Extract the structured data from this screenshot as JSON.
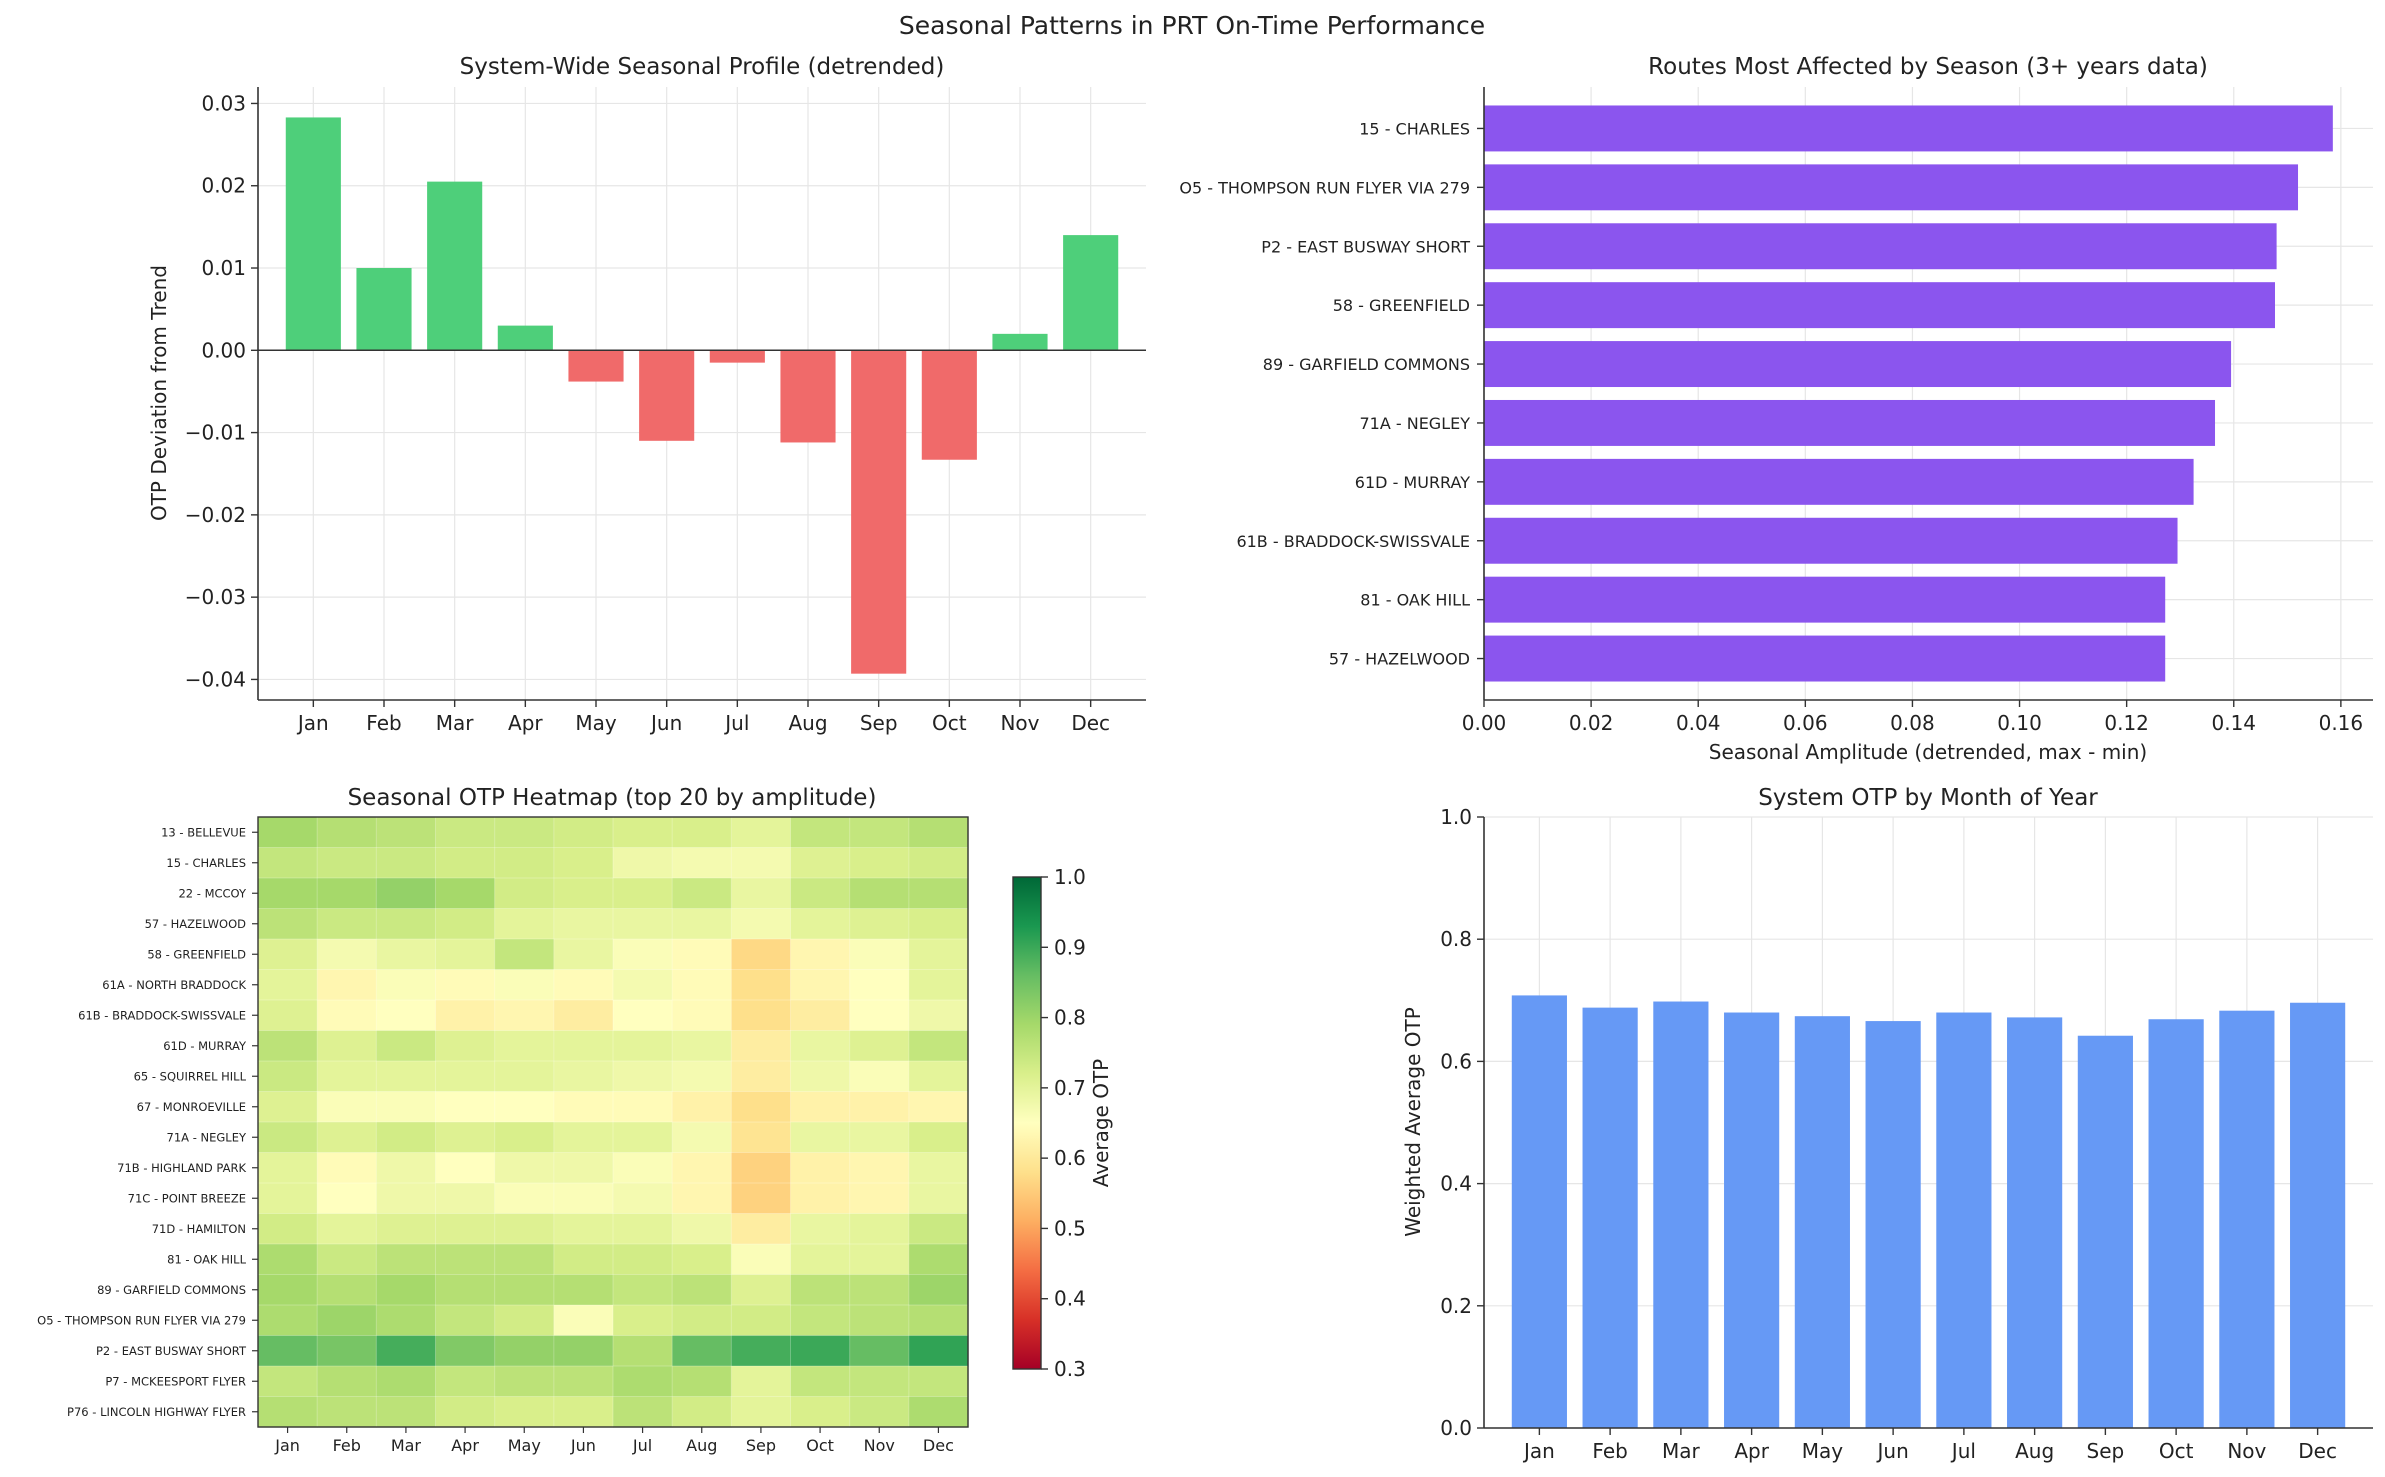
{
  "suptitle": "Seasonal Patterns in PRT On-Time Performance",
  "colors": {
    "positive": "#4ecf7a",
    "negative": "#f06a6a",
    "purple": "#8b55ee",
    "blue": "#6699f5",
    "grid": "#e6e6e6",
    "axis": "#333333"
  },
  "chart_data": [
    {
      "id": "seasonal_profile",
      "type": "bar",
      "title": "System-Wide Seasonal Profile (detrended)",
      "xlabel": "",
      "ylabel": "OTP Deviation from Trend",
      "categories": [
        "Jan",
        "Feb",
        "Mar",
        "Apr",
        "May",
        "Jun",
        "Jul",
        "Aug",
        "Sep",
        "Oct",
        "Nov",
        "Dec"
      ],
      "values": [
        0.0283,
        0.01,
        0.0205,
        0.003,
        -0.0038,
        -0.011,
        -0.0015,
        -0.0112,
        -0.0393,
        -0.0133,
        0.002,
        0.014
      ],
      "ylim": [
        -0.0425,
        0.032
      ],
      "yticks": [
        0.03,
        0.02,
        0.01,
        0.0,
        -0.01,
        -0.02,
        -0.03,
        -0.04
      ],
      "ytick_labels": [
        "0.03",
        "0.02",
        "0.01",
        "0.00",
        "−0.01",
        "−0.02",
        "−0.03",
        "−0.04"
      ],
      "grid": true
    },
    {
      "id": "routes_affected",
      "type": "bar",
      "orientation": "horizontal",
      "title": "Routes Most Affected by Season (3+ years data)",
      "xlabel": "Seasonal Amplitude (detrended, max - min)",
      "ylabel": "",
      "categories": [
        "15 - CHARLES",
        "O5 - THOMPSON RUN FLYER VIA 279",
        "P2 - EAST BUSWAY SHORT",
        "58 - GREENFIELD",
        "89 - GARFIELD COMMONS",
        "71A - NEGLEY",
        "61D - MURRAY",
        "61B - BRADDOCK-SWISSVALE",
        "81 - OAK HILL",
        "57 - HAZELWOOD"
      ],
      "values": [
        0.1585,
        0.152,
        0.148,
        0.1477,
        0.1395,
        0.1365,
        0.1325,
        0.1295,
        0.1272,
        0.1272
      ],
      "xlim": [
        0,
        0.166
      ],
      "xticks": [
        0.0,
        0.02,
        0.04,
        0.06,
        0.08,
        0.1,
        0.12,
        0.14,
        0.16
      ],
      "xtick_labels": [
        "0.00",
        "0.02",
        "0.04",
        "0.06",
        "0.08",
        "0.10",
        "0.12",
        "0.14",
        "0.16"
      ],
      "grid": true
    },
    {
      "id": "heatmap",
      "type": "heatmap",
      "title": "Seasonal OTP Heatmap (top 20 by amplitude)",
      "columns": [
        "Jan",
        "Feb",
        "Mar",
        "Apr",
        "May",
        "Jun",
        "Jul",
        "Aug",
        "Sep",
        "Oct",
        "Nov",
        "Dec"
      ],
      "rows": [
        "13 - BELLEVUE",
        "15 - CHARLES",
        "22 - MCCOY",
        "57 - HAZELWOOD",
        "58 - GREENFIELD",
        "61A - NORTH BRADDOCK",
        "61B - BRADDOCK-SWISSVALE",
        "61D - MURRAY",
        "65 - SQUIRREL HILL",
        "67 - MONROEVILLE",
        "71A - NEGLEY",
        "71B - HIGHLAND PARK",
        "71C - POINT BREEZE",
        "71D - HAMILTON",
        "81 - OAK HILL",
        "89 - GARFIELD COMMONS",
        "O5 - THOMPSON RUN FLYER VIA 279",
        "P2 - EAST BUSWAY SHORT",
        "P7 - MCKEESPORT FLYER",
        "P76 - LINCOLN HIGHWAY FLYER"
      ],
      "values": [
        [
          0.79,
          0.77,
          0.76,
          0.74,
          0.74,
          0.73,
          0.72,
          0.72,
          0.7,
          0.75,
          0.75,
          0.77
        ],
        [
          0.75,
          0.74,
          0.74,
          0.73,
          0.73,
          0.72,
          0.68,
          0.67,
          0.67,
          0.71,
          0.72,
          0.73
        ],
        [
          0.79,
          0.79,
          0.81,
          0.79,
          0.73,
          0.72,
          0.72,
          0.74,
          0.69,
          0.74,
          0.77,
          0.77
        ],
        [
          0.76,
          0.74,
          0.74,
          0.73,
          0.7,
          0.69,
          0.69,
          0.69,
          0.67,
          0.7,
          0.71,
          0.72
        ],
        [
          0.71,
          0.67,
          0.69,
          0.7,
          0.75,
          0.69,
          0.66,
          0.64,
          0.57,
          0.63,
          0.66,
          0.7
        ],
        [
          0.7,
          0.63,
          0.66,
          0.64,
          0.66,
          0.64,
          0.67,
          0.64,
          0.58,
          0.63,
          0.65,
          0.7
        ],
        [
          0.71,
          0.64,
          0.65,
          0.62,
          0.63,
          0.61,
          0.65,
          0.64,
          0.58,
          0.61,
          0.65,
          0.68
        ],
        [
          0.76,
          0.71,
          0.74,
          0.71,
          0.7,
          0.7,
          0.7,
          0.69,
          0.61,
          0.69,
          0.71,
          0.75
        ],
        [
          0.74,
          0.7,
          0.7,
          0.7,
          0.7,
          0.69,
          0.68,
          0.67,
          0.61,
          0.68,
          0.66,
          0.7
        ],
        [
          0.71,
          0.66,
          0.66,
          0.65,
          0.65,
          0.64,
          0.64,
          0.62,
          0.58,
          0.62,
          0.62,
          0.63
        ],
        [
          0.74,
          0.71,
          0.73,
          0.71,
          0.72,
          0.7,
          0.7,
          0.67,
          0.59,
          0.69,
          0.69,
          0.72
        ],
        [
          0.7,
          0.64,
          0.68,
          0.65,
          0.68,
          0.68,
          0.66,
          0.63,
          0.56,
          0.62,
          0.63,
          0.69
        ],
        [
          0.7,
          0.65,
          0.68,
          0.68,
          0.66,
          0.66,
          0.67,
          0.63,
          0.56,
          0.62,
          0.63,
          0.69
        ],
        [
          0.73,
          0.7,
          0.71,
          0.71,
          0.71,
          0.7,
          0.7,
          0.68,
          0.61,
          0.69,
          0.7,
          0.74
        ],
        [
          0.78,
          0.74,
          0.76,
          0.76,
          0.76,
          0.73,
          0.73,
          0.72,
          0.66,
          0.7,
          0.7,
          0.78
        ],
        [
          0.79,
          0.77,
          0.79,
          0.77,
          0.77,
          0.77,
          0.75,
          0.76,
          0.71,
          0.76,
          0.76,
          0.8
        ],
        [
          0.78,
          0.8,
          0.78,
          0.75,
          0.73,
          0.66,
          0.72,
          0.73,
          0.73,
          0.75,
          0.76,
          0.77
        ],
        [
          0.86,
          0.84,
          0.89,
          0.83,
          0.81,
          0.81,
          0.77,
          0.86,
          0.89,
          0.9,
          0.86,
          0.91
        ],
        [
          0.75,
          0.77,
          0.78,
          0.75,
          0.76,
          0.76,
          0.78,
          0.77,
          0.7,
          0.75,
          0.75,
          0.75
        ],
        [
          0.77,
          0.76,
          0.76,
          0.73,
          0.72,
          0.72,
          0.76,
          0.73,
          0.7,
          0.72,
          0.74,
          0.78
        ]
      ],
      "colorbar": {
        "label": "Average OTP",
        "vmin": 0.3,
        "vmax": 1.0,
        "ticks": [
          "0.3",
          "0.4",
          "0.5",
          "0.6",
          "0.7",
          "0.8",
          "0.9",
          "1.0"
        ]
      }
    },
    {
      "id": "system_otp",
      "type": "bar",
      "title": "System OTP by Month of Year",
      "xlabel": "",
      "ylabel": "Weighted Average OTP",
      "categories": [
        "Jan",
        "Feb",
        "Mar",
        "Apr",
        "May",
        "Jun",
        "Jul",
        "Aug",
        "Sep",
        "Oct",
        "Nov",
        "Dec"
      ],
      "values": [
        0.708,
        0.688,
        0.698,
        0.68,
        0.674,
        0.666,
        0.68,
        0.672,
        0.642,
        0.669,
        0.683,
        0.696
      ],
      "ylim": [
        0,
        1.0
      ],
      "yticks": [
        0.0,
        0.2,
        0.4,
        0.6,
        0.8,
        1.0
      ],
      "ytick_labels": [
        "0.0",
        "0.2",
        "0.4",
        "0.6",
        "0.8",
        "1.0"
      ],
      "grid": true
    }
  ]
}
